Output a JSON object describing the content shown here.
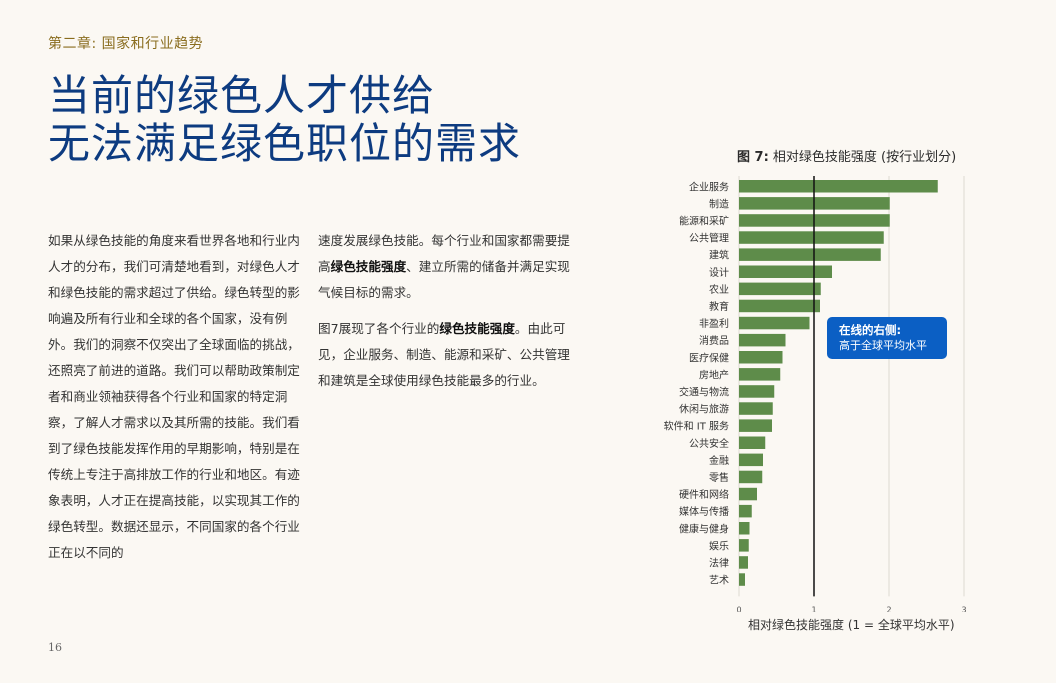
{
  "chapter": "第二章: 国家和行业趋势",
  "headline": [
    "当前的绿色人才供给",
    "无法满足绿色职位的需求"
  ],
  "col1": {
    "p1": "如果从绿色技能的角度来看世界各地和行业内人才的分布，我们可清楚地看到，对绿色人才和绿色技能的需求超过了供给。绿色转型的影响遍及所有行业和全球的各个国家，没有例外。我们的洞察不仅突出了全球面临的挑战，还照亮了前进的道路。我们可以帮助政策制定者和商业领袖获得各个行业和国家的特定洞察，了解人才需求以及其所需的技能。我们看到了绿色技能发挥作用的早期影响，特别是在传统上专注于高排放工作的行业和地区。有迹象表明，人才正在提高技能，以实现其工作的绿色转型。数据还显示，不同国家的各个行业正在以不同的"
  },
  "col2": {
    "p1_a": "速度发展绿色技能。每个行业和国家都需要提高",
    "p1_b": "绿色技能强度",
    "p1_c": "、建立所需的储备并满足实现气候目标的需求。",
    "p2_a": "图7展现了各个行业的",
    "p2_b": "绿色技能强度",
    "p2_c": "。由此可见，企业服务、制造、能源和采矿、公共管理和建筑是全球使用绿色技能最多的行业。"
  },
  "page_number": "16",
  "figure": {
    "label": "图 7:",
    "title": "相对绿色技能强度 (按行业划分)",
    "callout_title": "在线的右侧:",
    "callout_text": "高于全球平均水平",
    "x_title": "相对绿色技能强度 (1 = 全球平均水平)"
  },
  "chart_data": {
    "type": "bar",
    "orientation": "horizontal",
    "title": "相对绿色技能强度 (按行业划分)",
    "xlabel": "相对绿色技能强度 (1 = 全球平均水平)",
    "xlim": [
      0,
      3
    ],
    "xticks": [
      "0",
      "1",
      "2",
      "3"
    ],
    "reference_line": 1,
    "bar_color": "#5e8c4a",
    "grid": true,
    "categories": [
      "企业服务",
      "制造",
      "能源和采矿",
      "公共管理",
      "建筑",
      "设计",
      "农业",
      "教育",
      "非盈利",
      "消费品",
      "医疗保健",
      "房地产",
      "交通与物流",
      "休闲与旅游",
      "软件和 IT 服务",
      "公共安全",
      "金融",
      "零售",
      "硬件和网络",
      "媒体与传播",
      "健康与健身",
      "娱乐",
      "法律",
      "艺术"
    ],
    "values": [
      2.65,
      2.01,
      2.01,
      1.93,
      1.89,
      1.24,
      1.09,
      1.08,
      0.94,
      0.62,
      0.58,
      0.55,
      0.47,
      0.45,
      0.44,
      0.35,
      0.32,
      0.31,
      0.24,
      0.17,
      0.14,
      0.13,
      0.12,
      0.08
    ]
  }
}
